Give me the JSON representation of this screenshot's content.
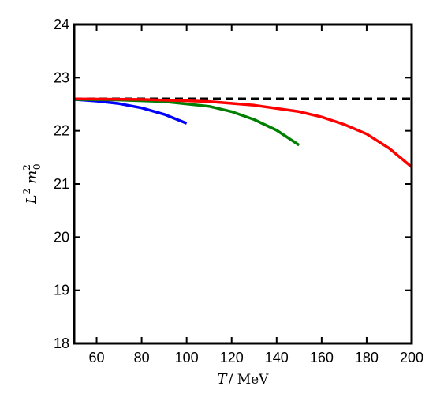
{
  "chart_data": {
    "type": "line",
    "xlabel": {
      "symbol": "T",
      "unit": "/ MeV"
    },
    "ylabel": {
      "base1": "L",
      "exp1": "2",
      "base2": "m",
      "sub2": "0",
      "exp2": "2"
    },
    "xlim": [
      50,
      200
    ],
    "ylim": [
      18,
      24
    ],
    "xticks": [
      60,
      80,
      100,
      120,
      140,
      160,
      180,
      200
    ],
    "yticks": [
      18,
      19,
      20,
      21,
      22,
      23,
      24
    ],
    "grid": false,
    "legend": "none",
    "series": [
      {
        "color": "#000000",
        "style": "dashed",
        "x": [
          50,
          200
        ],
        "y": [
          22.6,
          22.6
        ]
      },
      {
        "color": "#0000ff",
        "style": "solid",
        "x": [
          50,
          60,
          70,
          80,
          90,
          100
        ],
        "y": [
          22.59,
          22.56,
          22.51,
          22.43,
          22.31,
          22.14
        ]
      },
      {
        "color": "#008000",
        "style": "solid",
        "x": [
          50,
          70,
          90,
          110,
          120,
          130,
          140,
          150
        ],
        "y": [
          22.59,
          22.58,
          22.55,
          22.46,
          22.36,
          22.21,
          22.01,
          21.73
        ]
      },
      {
        "color": "#ff0000",
        "style": "solid",
        "x": [
          50,
          80,
          110,
          130,
          150,
          160,
          170,
          180,
          190,
          200
        ],
        "y": [
          22.6,
          22.59,
          22.55,
          22.48,
          22.36,
          22.26,
          22.12,
          21.94,
          21.67,
          21.32
        ]
      }
    ]
  }
}
